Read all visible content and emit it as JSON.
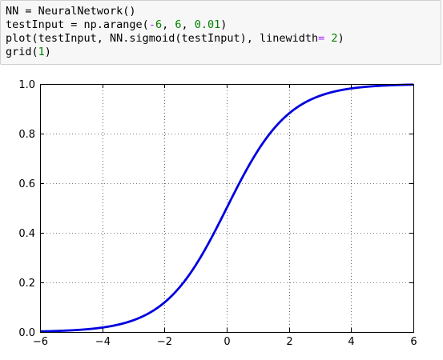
{
  "code_cell": {
    "lines": [
      [
        {
          "t": "NN = NeuralNetwork()",
          "c": ""
        }
      ],
      [
        {
          "t": "testInput = np.arange(",
          "c": ""
        },
        {
          "t": "-",
          "c": "op"
        },
        {
          "t": "6",
          "c": "num"
        },
        {
          "t": ", ",
          "c": ""
        },
        {
          "t": "6",
          "c": "num"
        },
        {
          "t": ", ",
          "c": ""
        },
        {
          "t": "0.01",
          "c": "num"
        },
        {
          "t": ")",
          "c": ""
        }
      ],
      [
        {
          "t": "plot(testInput, NN.sigmoid(testInput), linewidth",
          "c": ""
        },
        {
          "t": "=",
          "c": "op"
        },
        {
          "t": " ",
          "c": ""
        },
        {
          "t": "2",
          "c": "num"
        },
        {
          "t": ")",
          "c": ""
        }
      ],
      [
        {
          "t": "grid(",
          "c": ""
        },
        {
          "t": "1",
          "c": "num"
        },
        {
          "t": ")",
          "c": ""
        }
      ]
    ]
  },
  "chart_data": {
    "type": "line",
    "function": "sigmoid",
    "xlim": [
      -6,
      6
    ],
    "ylim": [
      0.0,
      1.0
    ],
    "x_ticks": [
      -6,
      -4,
      -2,
      0,
      2,
      4,
      6
    ],
    "x_tick_labels": [
      "−6",
      "−4",
      "−2",
      "0",
      "2",
      "4",
      "6"
    ],
    "y_ticks": [
      0.0,
      0.2,
      0.4,
      0.6,
      0.8,
      1.0
    ],
    "y_tick_labels": [
      "0.0",
      "0.2",
      "0.4",
      "0.6",
      "0.8",
      "1.0"
    ],
    "grid": true,
    "grid_style": "dotted",
    "series": [
      {
        "x_start": -6,
        "x_end": 6,
        "x_step": 0.01,
        "color": "#0000e0",
        "linewidth": 2
      }
    ]
  }
}
